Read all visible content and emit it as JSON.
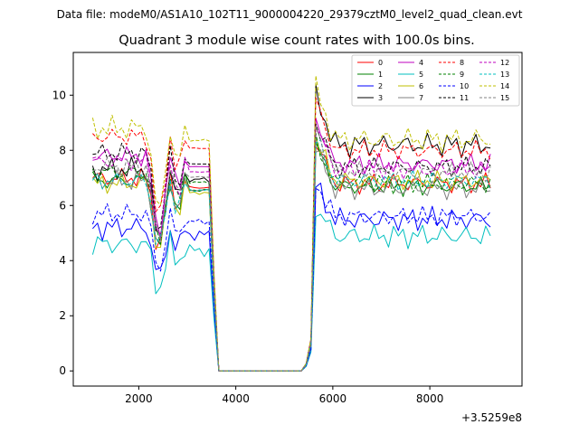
{
  "chart_data": {
    "type": "line",
    "suptitle": "Data file: modeM0/AS1A10_102T11_9000004220_29379cztM0_level2_quad_clean.evt",
    "title": "Quadrant 3 module wise count rates with 100.0s bins.",
    "xlabel": "",
    "ylabel": "",
    "x_offset_label": "+3.5259e8",
    "xlim": [
      650,
      9900
    ],
    "ylim": [
      -0.55,
      11.55
    ],
    "x_ticks": [
      2000,
      4000,
      6000,
      8000
    ],
    "y_ticks": [
      0,
      2,
      4,
      6,
      8,
      10
    ],
    "grid": false,
    "legend_position": "top-right",
    "x": {
      "start": 1050,
      "step": 100,
      "count": 83
    },
    "series": [
      {
        "name": "0",
        "color": "#ff0000",
        "dash": false,
        "level_a": 7.0,
        "level_b": 6.8,
        "amp": 0.25
      },
      {
        "name": "1",
        "color": "#008000",
        "dash": false,
        "level_a": 6.9,
        "level_b": 6.7,
        "amp": 0.25
      },
      {
        "name": "2",
        "color": "#0000ff",
        "dash": false,
        "level_a": 5.2,
        "level_b": 5.5,
        "amp": 0.3
      },
      {
        "name": "3",
        "color": "#000000",
        "dash": false,
        "level_a": 7.3,
        "level_b": 8.2,
        "amp": 0.3
      },
      {
        "name": "4",
        "color": "#bf00bf",
        "dash": false,
        "level_a": 7.8,
        "level_b": 7.5,
        "amp": 0.25
      },
      {
        "name": "5",
        "color": "#00bfbf",
        "dash": false,
        "level_a": 4.6,
        "level_b": 4.9,
        "amp": 0.3
      },
      {
        "name": "6",
        "color": "#bfbf00",
        "dash": false,
        "level_a": 6.8,
        "level_b": 6.9,
        "amp": 0.25
      },
      {
        "name": "7",
        "color": "#808080",
        "dash": false,
        "level_a": 6.9,
        "level_b": 6.6,
        "amp": 0.25
      },
      {
        "name": "8",
        "color": "#ff0000",
        "dash": true,
        "level_a": 8.5,
        "level_b": 8.0,
        "amp": 0.25
      },
      {
        "name": "9",
        "color": "#008000",
        "dash": true,
        "level_a": 7.2,
        "level_b": 6.8,
        "amp": 0.25
      },
      {
        "name": "10",
        "color": "#0000ff",
        "dash": true,
        "level_a": 5.7,
        "level_b": 5.6,
        "amp": 0.25
      },
      {
        "name": "11",
        "color": "#000000",
        "dash": true,
        "level_a": 7.9,
        "level_b": 7.4,
        "amp": 0.25
      },
      {
        "name": "12",
        "color": "#bf00bf",
        "dash": true,
        "level_a": 7.6,
        "level_b": 7.3,
        "amp": 0.25
      },
      {
        "name": "13",
        "color": "#00bfbf",
        "dash": true,
        "level_a": 6.9,
        "level_b": 6.9,
        "amp": 0.25
      },
      {
        "name": "14",
        "color": "#bfbf00",
        "dash": true,
        "level_a": 8.8,
        "level_b": 8.4,
        "amp": 0.3
      },
      {
        "name": "15",
        "color": "#808080",
        "dash": true,
        "level_a": 7.4,
        "level_b": 7.2,
        "amp": 0.25
      }
    ]
  }
}
